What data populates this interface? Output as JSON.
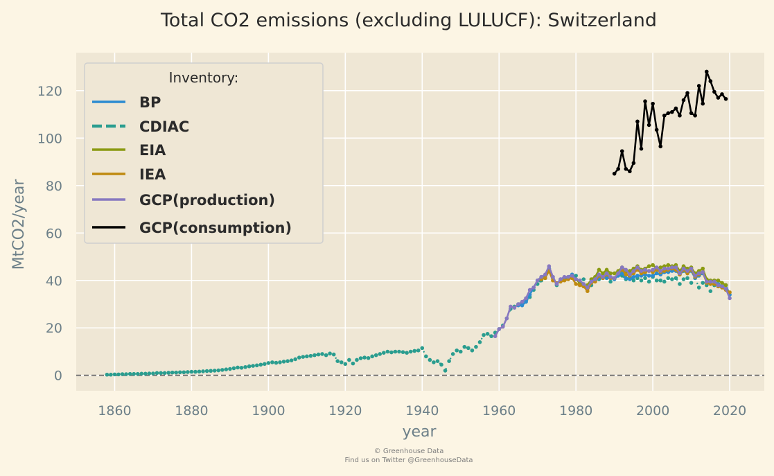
{
  "chart_data": {
    "type": "line",
    "title": "Total CO2 emissions (excluding LULUCF): Switzerland",
    "xlabel": "year",
    "ylabel": "MtCO2/year",
    "xlim": [
      1850,
      2029
    ],
    "ylim": [
      -6.5,
      136
    ],
    "xticks": [
      1860,
      1880,
      1900,
      1920,
      1940,
      1960,
      1980,
      2000,
      2020
    ],
    "yticks": [
      0,
      20,
      40,
      60,
      80,
      100,
      120
    ],
    "grid": true,
    "legend": {
      "title": "Inventory:",
      "placement": "top-left"
    },
    "reference_line": {
      "y": 0,
      "style": "dashed",
      "color": "#777777"
    },
    "credits": [
      "© Greenhouse Data",
      "Find us on Twitter @GreenhouseData"
    ],
    "series": [
      {
        "name": "CDIAC",
        "color": "#2a9d8f",
        "style": "dashed",
        "x": [
          1858,
          1859,
          1860,
          1861,
          1862,
          1863,
          1864,
          1865,
          1866,
          1867,
          1868,
          1869,
          1870,
          1871,
          1872,
          1873,
          1874,
          1875,
          1876,
          1877,
          1878,
          1879,
          1880,
          1881,
          1882,
          1883,
          1884,
          1885,
          1886,
          1887,
          1888,
          1889,
          1890,
          1891,
          1892,
          1893,
          1894,
          1895,
          1896,
          1897,
          1898,
          1899,
          1900,
          1901,
          1902,
          1903,
          1904,
          1905,
          1906,
          1907,
          1908,
          1909,
          1910,
          1911,
          1912,
          1913,
          1914,
          1915,
          1916,
          1917,
          1918,
          1919,
          1920,
          1921,
          1922,
          1923,
          1924,
          1925,
          1926,
          1927,
          1928,
          1929,
          1930,
          1931,
          1932,
          1933,
          1934,
          1935,
          1936,
          1937,
          1938,
          1939,
          1940,
          1941,
          1942,
          1943,
          1944,
          1945,
          1946,
          1947,
          1948,
          1949,
          1950,
          1951,
          1952,
          1953,
          1954,
          1955,
          1956,
          1957,
          1958,
          1959,
          1960,
          1961,
          1962,
          1963,
          1964,
          1965,
          1966,
          1967,
          1968,
          1969,
          1970,
          1971,
          1972,
          1973,
          1974,
          1975,
          1976,
          1977,
          1978,
          1979,
          1980,
          1981,
          1982,
          1983,
          1984,
          1985,
          1986,
          1987,
          1988,
          1989,
          1990,
          1991,
          1992,
          1993,
          1994,
          1995,
          1996,
          1997,
          1998,
          1999,
          2000,
          2001,
          2002,
          2003,
          2004,
          2005,
          2006,
          2007,
          2008,
          2009,
          2010,
          2011,
          2012,
          2013,
          2014,
          2015,
          2016,
          2017,
          2018
        ],
        "values": [
          0.3,
          0.3,
          0.4,
          0.4,
          0.5,
          0.5,
          0.6,
          0.6,
          0.6,
          0.7,
          0.7,
          0.8,
          0.8,
          1.0,
          1.0,
          1.0,
          1.1,
          1.2,
          1.2,
          1.3,
          1.3,
          1.4,
          1.5,
          1.5,
          1.6,
          1.7,
          1.8,
          1.9,
          2.0,
          2.1,
          2.3,
          2.5,
          2.7,
          3.0,
          3.3,
          3.2,
          3.5,
          3.8,
          4.0,
          4.2,
          4.5,
          4.8,
          5.2,
          5.5,
          5.3,
          5.5,
          5.8,
          6.0,
          6.3,
          6.8,
          7.5,
          7.8,
          8.0,
          8.2,
          8.5,
          8.8,
          9.0,
          8.5,
          9.2,
          8.8,
          6.0,
          5.5,
          4.8,
          6.5,
          5.0,
          6.5,
          7.2,
          7.5,
          7.3,
          8.0,
          8.5,
          9.0,
          9.5,
          10.0,
          9.7,
          10.0,
          10.0,
          9.8,
          9.5,
          10.0,
          10.3,
          10.5,
          11.5,
          8.0,
          6.5,
          5.5,
          6.0,
          4.5,
          2.0,
          6.0,
          9.0,
          10.5,
          10.0,
          12.0,
          11.5,
          10.5,
          12.0,
          14.0,
          17.0,
          17.5,
          16.5,
          18.0,
          19.5,
          21.0,
          24.0,
          28.0,
          29.0,
          30.0,
          30.0,
          31.0,
          33.0,
          36.0,
          38.5,
          40.0,
          41.0,
          45.0,
          41.5,
          38.0,
          40.0,
          40.5,
          41.0,
          41.5,
          42.0,
          40.0,
          40.5,
          37.0,
          38.0,
          40.0,
          40.5,
          41.0,
          41.5,
          39.5,
          41.0,
          42.5,
          42.0,
          40.5,
          41.5,
          40.0,
          41.0,
          40.0,
          41.0,
          39.5,
          41.5,
          40.0,
          40.0,
          39.5,
          41.0,
          40.5,
          41.0,
          38.5,
          40.5,
          41.0,
          39.0,
          41.0,
          37.0,
          39.0,
          38.0,
          35.5,
          38.0,
          37.5,
          37.5
        ]
      },
      {
        "name": "BP",
        "color": "#2b8bd1",
        "style": "solid",
        "x": [
          1965,
          1966,
          1967,
          1968,
          1969,
          1970,
          1971,
          1972,
          1973,
          1974,
          1975,
          1976,
          1977,
          1978,
          1979,
          1980,
          1981,
          1982,
          1983,
          1984,
          1985,
          1986,
          1987,
          1988,
          1989,
          1990,
          1991,
          1992,
          1993,
          1994,
          1995,
          1996,
          1997,
          1998,
          1999,
          2000,
          2001,
          2002,
          2003,
          2004,
          2005,
          2006,
          2007,
          2008,
          2009,
          2010,
          2011,
          2012,
          2013,
          2014,
          2015,
          2016,
          2017,
          2018,
          2019,
          2020
        ],
        "values": [
          29.5,
          29.5,
          31.0,
          34.0,
          37.0,
          40.0,
          41.5,
          42.0,
          45.0,
          41.0,
          38.5,
          40.5,
          41.0,
          41.5,
          42.5,
          40.5,
          40.0,
          38.0,
          37.0,
          39.0,
          40.5,
          41.0,
          42.0,
          41.0,
          41.0,
          40.5,
          42.0,
          43.0,
          41.0,
          40.5,
          41.5,
          42.0,
          42.0,
          42.5,
          42.0,
          42.0,
          43.0,
          42.5,
          43.5,
          43.5,
          44.0,
          44.0,
          42.5,
          44.0,
          43.0,
          44.0,
          41.0,
          42.0,
          43.0,
          40.0,
          39.5,
          39.5,
          38.5,
          37.5,
          38.0,
          34.0
        ]
      },
      {
        "name": "EIA",
        "color": "#8a9a12",
        "style": "solid",
        "x": [
          1980,
          1981,
          1982,
          1983,
          1984,
          1985,
          1986,
          1987,
          1988,
          1989,
          1990,
          1991,
          1992,
          1993,
          1994,
          1995,
          1996,
          1997,
          1998,
          1999,
          2000,
          2001,
          2002,
          2003,
          2004,
          2005,
          2006,
          2007,
          2008,
          2009,
          2010,
          2011,
          2012,
          2013,
          2014,
          2015,
          2016,
          2017,
          2018,
          2019
        ],
        "values": [
          40.5,
          39.0,
          37.5,
          38.0,
          40.5,
          41.5,
          44.5,
          43.0,
          44.5,
          43.0,
          43.0,
          44.0,
          45.5,
          43.5,
          44.0,
          45.0,
          46.0,
          44.5,
          45.0,
          46.0,
          46.5,
          45.0,
          45.5,
          46.0,
          46.5,
          46.0,
          46.5,
          44.0,
          46.0,
          45.0,
          45.5,
          43.0,
          44.0,
          45.0,
          40.5,
          40.0,
          40.0,
          40.0,
          39.0,
          38.0
        ]
      },
      {
        "name": "IEA",
        "color": "#bf8a10",
        "style": "solid",
        "x": [
          1971,
          1972,
          1973,
          1974,
          1975,
          1976,
          1977,
          1978,
          1979,
          1980,
          1981,
          1982,
          1983,
          1984,
          1985,
          1986,
          1987,
          1988,
          1989,
          1990,
          1991,
          1992,
          1993,
          1994,
          1995,
          1996,
          1997,
          1998,
          1999,
          2000,
          2001,
          2002,
          2003,
          2004,
          2005,
          2006,
          2007,
          2008,
          2009,
          2010,
          2011,
          2012,
          2013,
          2014,
          2015,
          2016,
          2017,
          2018,
          2019,
          2020
        ],
        "values": [
          40.5,
          41.0,
          44.0,
          40.0,
          39.0,
          39.5,
          40.0,
          40.5,
          41.0,
          38.5,
          38.0,
          37.5,
          35.5,
          39.0,
          39.5,
          42.0,
          41.0,
          42.5,
          41.0,
          41.0,
          43.0,
          44.5,
          42.5,
          42.0,
          43.0,
          44.5,
          43.0,
          43.5,
          44.0,
          43.5,
          44.5,
          43.5,
          44.0,
          44.5,
          45.0,
          44.5,
          42.5,
          44.5,
          43.0,
          44.5,
          41.5,
          42.5,
          43.5,
          39.0,
          38.5,
          38.5,
          37.5,
          37.0,
          36.0,
          35.0
        ]
      },
      {
        "name": "GCP(production)",
        "color": "#8778c0",
        "style": "solid",
        "x": [
          1959,
          1960,
          1961,
          1962,
          1963,
          1964,
          1965,
          1966,
          1967,
          1968,
          1969,
          1970,
          1971,
          1972,
          1973,
          1974,
          1975,
          1976,
          1977,
          1978,
          1979,
          1980,
          1981,
          1982,
          1983,
          1984,
          1985,
          1986,
          1987,
          1988,
          1989,
          1990,
          1991,
          1992,
          1993,
          1994,
          1995,
          1996,
          1997,
          1998,
          1999,
          2000,
          2001,
          2002,
          2003,
          2004,
          2005,
          2006,
          2007,
          2008,
          2009,
          2010,
          2011,
          2012,
          2013,
          2014,
          2015,
          2016,
          2017,
          2018,
          2019,
          2020
        ],
        "values": [
          16.5,
          19.5,
          20.5,
          24.0,
          29.0,
          28.5,
          30.0,
          31.0,
          32.5,
          36.0,
          37.0,
          40.0,
          41.5,
          42.5,
          46.0,
          41.5,
          38.5,
          40.5,
          41.5,
          41.5,
          42.0,
          40.5,
          40.0,
          38.5,
          37.0,
          39.5,
          40.5,
          42.5,
          41.5,
          43.0,
          41.5,
          41.0,
          43.0,
          45.5,
          44.5,
          42.5,
          44.0,
          45.5,
          44.0,
          44.5,
          44.0,
          44.5,
          45.5,
          44.0,
          45.0,
          45.0,
          45.5,
          45.5,
          43.0,
          45.0,
          44.0,
          45.0,
          42.0,
          43.0,
          43.5,
          39.5,
          39.5,
          39.5,
          38.0,
          37.5,
          36.5,
          32.5
        ]
      },
      {
        "name": "GCP(consumption)",
        "color": "#000000",
        "style": "solid",
        "x": [
          1990,
          1991,
          1992,
          1993,
          1994,
          1995,
          1996,
          1997,
          1998,
          1999,
          2000,
          2001,
          2002,
          2003,
          2004,
          2005,
          2006,
          2007,
          2008,
          2009,
          2010,
          2011,
          2012,
          2013,
          2014,
          2015,
          2016,
          2017,
          2018,
          2019
        ],
        "values": [
          85.0,
          87.0,
          94.5,
          87.0,
          86.0,
          89.5,
          107.0,
          95.5,
          115.5,
          105.5,
          114.5,
          103.5,
          96.5,
          109.5,
          110.5,
          111.0,
          112.5,
          109.5,
          116.0,
          119.0,
          110.5,
          109.5,
          122.0,
          114.5,
          128.0,
          124.0,
          119.5,
          117.0,
          118.5,
          116.5
        ]
      }
    ]
  }
}
